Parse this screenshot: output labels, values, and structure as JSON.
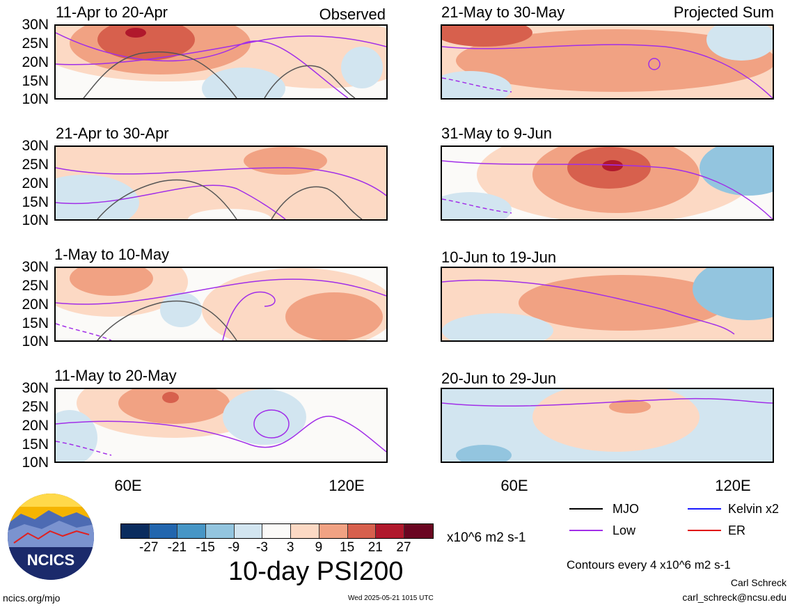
{
  "panels": [
    {
      "id": "p1",
      "title": "11-Apr to 20-Apr",
      "tag": "Observed"
    },
    {
      "id": "p2",
      "title": "21-Apr to 30-Apr",
      "tag": ""
    },
    {
      "id": "p3",
      "title": "1-May to 10-May",
      "tag": ""
    },
    {
      "id": "p4",
      "title": "11-May to 20-May",
      "tag": ""
    },
    {
      "id": "p5",
      "title": "21-May to 30-May",
      "tag": "Projected Sum"
    },
    {
      "id": "p6",
      "title": "31-May to 9-Jun",
      "tag": ""
    },
    {
      "id": "p7",
      "title": "10-Jun to 19-Jun",
      "tag": ""
    },
    {
      "id": "p8",
      "title": "20-Jun to 29-Jun",
      "tag": ""
    }
  ],
  "y_labels": [
    "30N",
    "25N",
    "20N",
    "15N",
    "10N"
  ],
  "x_labels": {
    "left": [
      "60E",
      "120E"
    ],
    "right": [
      "60E",
      "120E"
    ]
  },
  "colorbar": {
    "colors": [
      "#0a2c5e",
      "#2266ae",
      "#4796c6",
      "#93c5df",
      "#d2e5f0",
      "#fbfaf8",
      "#fcd9c4",
      "#f1a283",
      "#d7604d",
      "#b0182c",
      "#6a0521"
    ],
    "labels": [
      "-27",
      "-21",
      "-15",
      "-9",
      "-3",
      "3",
      "9",
      "15",
      "21",
      "27"
    ],
    "units": "x10^6 m2 s-1"
  },
  "main_title": "10-day PSI200",
  "legend": {
    "items": [
      {
        "label": "MJO",
        "color": "#000000"
      },
      {
        "label": "Kelvin x2",
        "color": "#1a1aff"
      },
      {
        "label": "Low",
        "color": "#a12ee8"
      },
      {
        "label": "ER",
        "color": "#e00000"
      }
    ],
    "contours_note": "Contours every 4 x10^6 m2 s-1"
  },
  "footer": {
    "org": "NCICS",
    "url": "ncics.org/mjo",
    "timestamp": "Wed 2025-05-21 1015 UTC",
    "author": "Carl Schreck",
    "email": "carl_schreck@ncsu.edu"
  }
}
